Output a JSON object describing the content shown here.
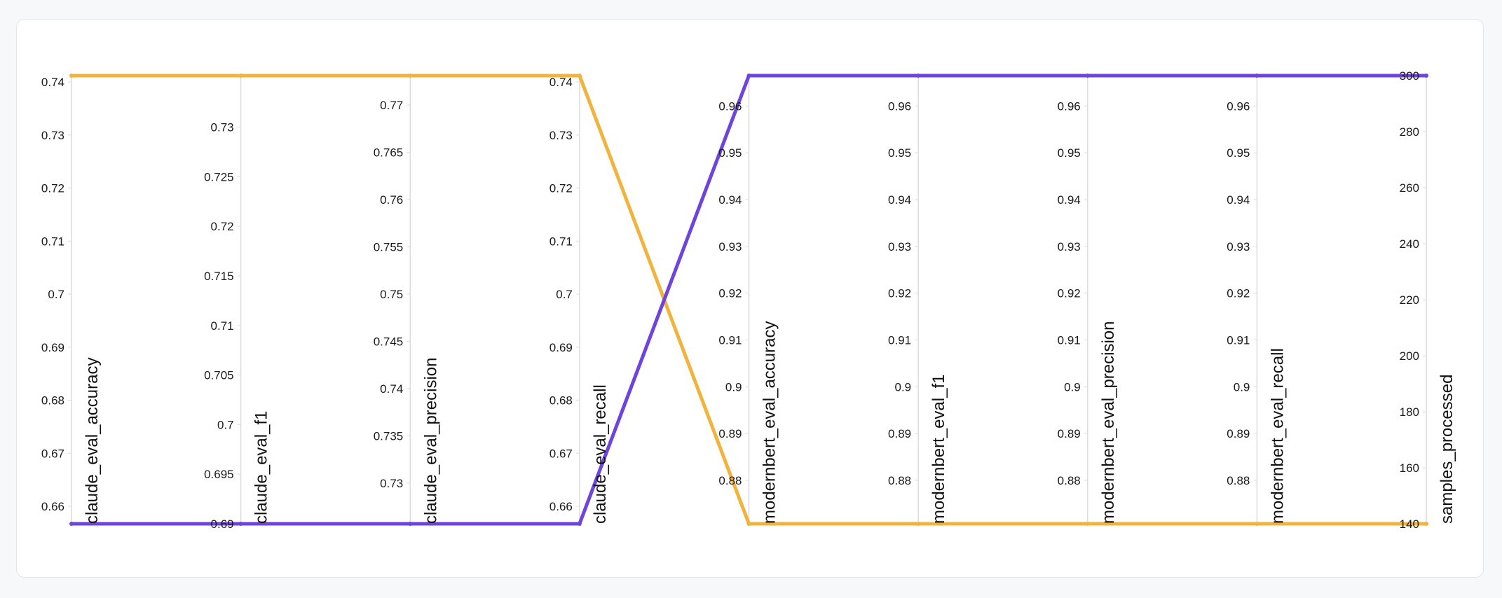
{
  "chart_data": {
    "type": "parallel_coordinates",
    "title": "",
    "axes": [
      {
        "name": "claude_eval_accuracy",
        "range": [
          0.6567,
          0.7412
        ],
        "ticks": [
          0.66,
          0.67,
          0.68,
          0.69,
          0.7,
          0.71,
          0.72,
          0.73,
          0.74
        ]
      },
      {
        "name": "claude_eval_f1",
        "range": [
          0.69,
          0.7352
        ],
        "ticks": [
          0.69,
          0.695,
          0.7,
          0.705,
          0.71,
          0.715,
          0.72,
          0.725,
          0.73
        ]
      },
      {
        "name": "claude_eval_precision",
        "range": [
          0.7257,
          0.7731
        ],
        "ticks": [
          0.73,
          0.735,
          0.74,
          0.745,
          0.75,
          0.755,
          0.76,
          0.765,
          0.77
        ]
      },
      {
        "name": "claude_eval_recall",
        "range": [
          0.6567,
          0.7412
        ],
        "ticks": [
          0.66,
          0.67,
          0.68,
          0.69,
          0.7,
          0.71,
          0.72,
          0.73,
          0.74
        ]
      },
      {
        "name": "modernbert_eval_accuracy",
        "range": [
          0.8707,
          0.9665
        ],
        "ticks": [
          0.88,
          0.89,
          0.9,
          0.91,
          0.92,
          0.93,
          0.94,
          0.95,
          0.96
        ]
      },
      {
        "name": "modernbert_eval_f1",
        "range": [
          0.8707,
          0.9665
        ],
        "ticks": [
          0.88,
          0.89,
          0.9,
          0.91,
          0.92,
          0.93,
          0.94,
          0.95,
          0.96
        ]
      },
      {
        "name": "modernbert_eval_precision",
        "range": [
          0.8707,
          0.9665
        ],
        "ticks": [
          0.88,
          0.89,
          0.9,
          0.91,
          0.92,
          0.93,
          0.94,
          0.95,
          0.96
        ]
      },
      {
        "name": "modernbert_eval_recall",
        "range": [
          0.8707,
          0.9665
        ],
        "ticks": [
          0.88,
          0.89,
          0.9,
          0.91,
          0.92,
          0.93,
          0.94,
          0.95,
          0.96
        ]
      },
      {
        "name": "samples_processed",
        "range": [
          140,
          300
        ],
        "ticks": [
          140,
          160,
          180,
          200,
          220,
          240,
          260,
          280,
          300
        ]
      }
    ],
    "series": [
      {
        "color": "#f2b33d",
        "values": [
          0.7412,
          0.7352,
          0.7731,
          0.7412,
          0.8707,
          0.8707,
          0.8707,
          0.8707,
          140
        ]
      },
      {
        "color": "#6e44dc",
        "values": [
          0.6567,
          0.69,
          0.7257,
          0.6567,
          0.9665,
          0.9665,
          0.9665,
          0.9665,
          300
        ]
      }
    ],
    "grid": false,
    "legend": "none"
  }
}
